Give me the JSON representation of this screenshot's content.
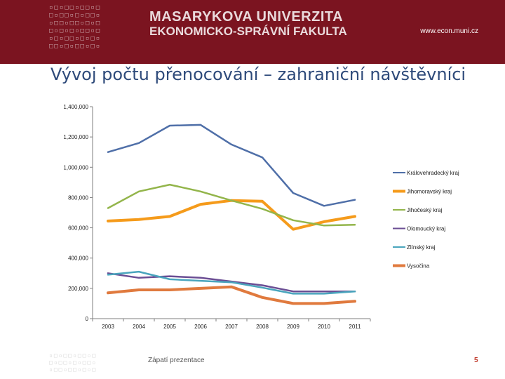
{
  "header": {
    "university": "MASARYKOVA UNIVERZITA",
    "faculty": "EKONOMICKO-SPRÁVNÍ FAKULTA",
    "url": "www.econ.muni.cz"
  },
  "slide": {
    "title": "Vývoj počtu přenocování – zahraniční návštěvníci",
    "footer": "Zápatí prezentace",
    "page_number": "5"
  },
  "colors": {
    "header_bg": "#7b1420",
    "title": "#2e4a7a",
    "page_number": "#c0392b"
  },
  "chart_data": {
    "type": "line",
    "title": "",
    "xlabel": "",
    "ylabel": "",
    "x": [
      "2003",
      "2004",
      "2005",
      "2006",
      "2007",
      "2008",
      "2009",
      "2010",
      "2011"
    ],
    "ylim": [
      0,
      1400000
    ],
    "yticks": [
      0,
      200000,
      400000,
      600000,
      800000,
      1000000,
      1200000,
      1400000
    ],
    "ytick_labels": [
      "0",
      "200,000",
      "400,000",
      "600,000",
      "800,000",
      "1,000,000",
      "1,200,000",
      "1,400,000"
    ],
    "legend_position": "right",
    "series": [
      {
        "name": "Královehradecký kraj",
        "color": "#4f6fa8",
        "values": [
          1100000,
          1160000,
          1275000,
          1280000,
          1150000,
          1065000,
          830000,
          745000,
          785000
        ]
      },
      {
        "name": "Jihomoravský kraj",
        "color": "#f59b1b",
        "values": [
          645000,
          655000,
          675000,
          755000,
          780000,
          775000,
          590000,
          640000,
          675000
        ]
      },
      {
        "name": "Jihočeský kraj",
        "color": "#93b54b",
        "values": [
          730000,
          840000,
          885000,
          840000,
          780000,
          725000,
          650000,
          615000,
          620000
        ]
      },
      {
        "name": "Olomoucký kraj",
        "color": "#6b4e94",
        "values": [
          300000,
          270000,
          280000,
          270000,
          245000,
          220000,
          180000,
          180000,
          180000
        ]
      },
      {
        "name": "Zlínský kraj",
        "color": "#4aa5bd",
        "values": [
          290000,
          310000,
          260000,
          250000,
          240000,
          205000,
          165000,
          165000,
          180000
        ]
      },
      {
        "name": "Vysočina",
        "color": "#e07a3e",
        "values": [
          170000,
          190000,
          190000,
          200000,
          210000,
          140000,
          100000,
          100000,
          115000
        ]
      }
    ]
  }
}
